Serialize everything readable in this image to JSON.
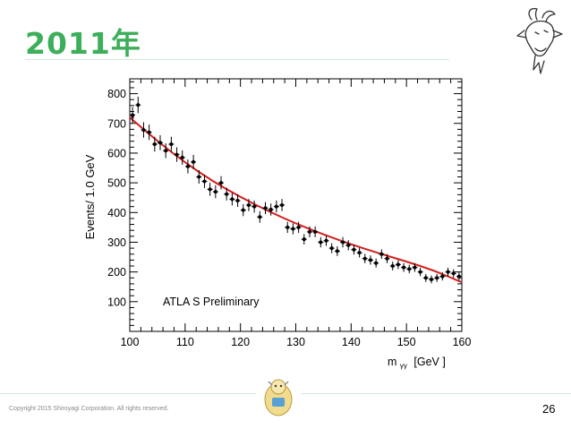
{
  "slide": {
    "title": "2011年",
    "copyright": "Copyright 2015 Shiroyagi Corporation. All rights reserved.",
    "page_number": "26",
    "accent_color": "#3dae5a",
    "icons": [
      "goat-icon",
      "mascot-icon"
    ]
  },
  "chart_data": {
    "type": "scatter",
    "title": "",
    "xlabel": "mγγ [GeV ]",
    "xlabel_main": "m",
    "xlabel_sub": "γγ",
    "xlabel_unit": "[GeV ]",
    "ylabel": "Events/ 1.0 GeV",
    "annotation": "ATLA S  Preliminary",
    "xlim": [
      100,
      160
    ],
    "ylim": [
      0,
      850
    ],
    "x_ticks": [
      100,
      110,
      120,
      130,
      140,
      150,
      160
    ],
    "y_ticks": [
      100,
      200,
      300,
      400,
      500,
      600,
      700,
      800
    ],
    "grid": false,
    "legend": "none",
    "fit_color": "#d42020",
    "marker_color": "#000000",
    "series": [
      {
        "values_x": [
          100.5,
          101.5,
          102.5,
          103.5,
          104.5,
          105.5,
          106.5,
          107.5,
          108.5,
          109.5,
          110.5,
          111.5,
          112.5,
          113.5,
          114.5,
          115.5,
          116.5,
          117.5,
          118.5,
          119.5,
          120.5,
          121.5,
          122.5,
          123.5,
          124.5,
          125.5,
          126.5,
          127.5,
          128.5,
          129.5,
          130.5,
          131.5,
          132.5,
          133.5,
          134.5,
          135.5,
          136.5,
          137.5,
          138.5,
          139.5,
          140.5,
          141.5,
          142.5,
          143.5,
          144.5,
          145.5,
          146.5,
          147.5,
          148.5,
          149.5,
          150.5,
          151.5,
          152.5,
          153.5,
          154.5,
          155.5,
          156.5,
          157.5,
          158.5,
          159.5
        ],
        "values_y": [
          728,
          762,
          678,
          670,
          630,
          635,
          608,
          630,
          595,
          585,
          555,
          570,
          520,
          505,
          478,
          470,
          500,
          462,
          445,
          440,
          408,
          425,
          420,
          385,
          415,
          410,
          420,
          425,
          350,
          345,
          350,
          310,
          335,
          335,
          300,
          305,
          280,
          270,
          300,
          290,
          275,
          265,
          245,
          240,
          230,
          260,
          245,
          220,
          225,
          215,
          210,
          215,
          200,
          180,
          175,
          180,
          185,
          200,
          195,
          185
        ]
      }
    ],
    "fit": {
      "x": [
        100,
        105,
        110,
        115,
        120,
        125,
        130,
        135,
        140,
        145,
        150,
        155,
        160
      ],
      "y": [
        720,
        640,
        568,
        505,
        452,
        405,
        363,
        326,
        293,
        263,
        235,
        205,
        165
      ]
    }
  }
}
